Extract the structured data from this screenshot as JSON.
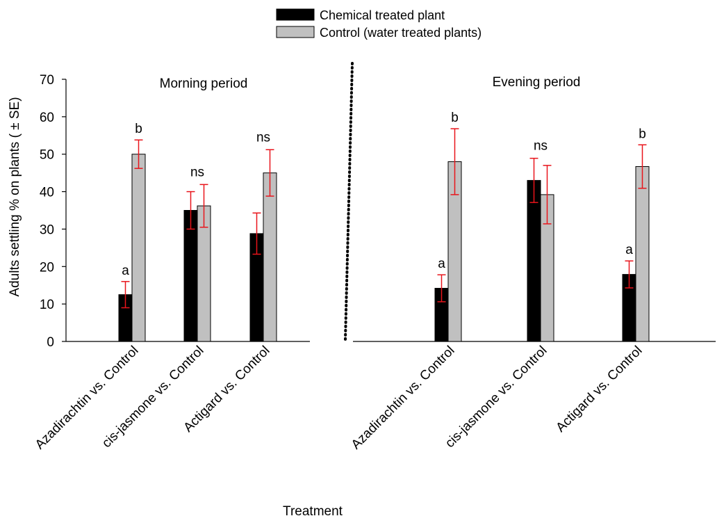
{
  "legend": [
    {
      "label": "Chemical treated plant",
      "color": "#000000"
    },
    {
      "label": "Control (water treated plants)",
      "color": "#c0c0c0"
    }
  ],
  "colors": {
    "chemical": "#000000",
    "control": "#c0c0c0",
    "error_bar": "#e8141b"
  },
  "chart_data": [
    {
      "type": "bar",
      "title": "Morning period",
      "xlabel": "Treatment",
      "ylabel": "Adults settling % on plants ( ± SE)",
      "ylim": [
        0,
        70
      ],
      "yticks": [
        "0",
        "10",
        "20",
        "30",
        "40",
        "50",
        "60",
        "70"
      ],
      "categories": [
        "Azadirachtin vs. Control",
        "cis-jasmone vs. Control",
        "Actigard vs. Control"
      ],
      "series": [
        {
          "name": "Chemical treated plant",
          "values": [
            12.5,
            35.0,
            28.8
          ],
          "errors": [
            3.5,
            5.0,
            5.5
          ],
          "labels": [
            "a",
            "",
            ""
          ]
        },
        {
          "name": "Control (water treated plants)",
          "values": [
            50.0,
            36.2,
            45.0
          ],
          "errors": [
            3.8,
            5.7,
            6.2
          ],
          "labels": [
            "b",
            "",
            ""
          ]
        }
      ],
      "group_labels": [
        "",
        "ns",
        "ns"
      ]
    },
    {
      "type": "bar",
      "title": "Evening period",
      "xlabel": "Treatment",
      "ylabel": "",
      "ylim": [
        0,
        70
      ],
      "categories": [
        "Azadirachtin vs. Control",
        "cis-jasmone vs. Control",
        "Actigard vs. Control"
      ],
      "series": [
        {
          "name": "Chemical treated plant",
          "values": [
            14.2,
            43.0,
            17.9
          ],
          "errors": [
            3.6,
            5.9,
            3.6
          ],
          "labels": [
            "a",
            "",
            "a"
          ]
        },
        {
          "name": "Control (water treated plants)",
          "values": [
            48.0,
            39.2,
            46.7
          ],
          "errors": [
            8.8,
            7.8,
            5.8
          ],
          "labels": [
            "b",
            "",
            "b"
          ]
        }
      ],
      "group_labels": [
        "",
        "ns",
        ""
      ]
    }
  ]
}
